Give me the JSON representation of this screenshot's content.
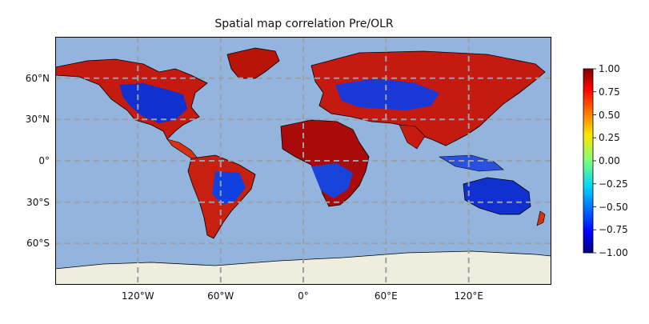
{
  "map": {
    "title": "Spatial map correlation Pre/OLR",
    "projection": "PlateCarree",
    "ocean_color": "#93b4dd",
    "land_color_no_data": "#efedde",
    "gridline_color": "#9aa0a6",
    "lat_ticks": [
      {
        "value": 60,
        "label": "60°N"
      },
      {
        "value": 30,
        "label": "30°N"
      },
      {
        "value": 0,
        "label": "0°"
      },
      {
        "value": -30,
        "label": "30°S"
      },
      {
        "value": -60,
        "label": "60°S"
      }
    ],
    "lon_ticks": [
      {
        "value": -120,
        "label": "120°W"
      },
      {
        "value": -60,
        "label": "60°W"
      },
      {
        "value": 0,
        "label": "0°"
      },
      {
        "value": 60,
        "label": "60°E"
      },
      {
        "value": 120,
        "label": "120°E"
      }
    ],
    "extent": {
      "lon": [
        -180,
        180
      ],
      "lat": [
        -90,
        90
      ]
    }
  },
  "colorbar": {
    "colormap": "jet",
    "range": [
      -1.0,
      1.0
    ],
    "tick_labels": [
      "1.00",
      "0.75",
      "0.50",
      "0.25",
      "0.00",
      "−0.25",
      "−0.50",
      "−0.75",
      "−1.00"
    ]
  }
}
